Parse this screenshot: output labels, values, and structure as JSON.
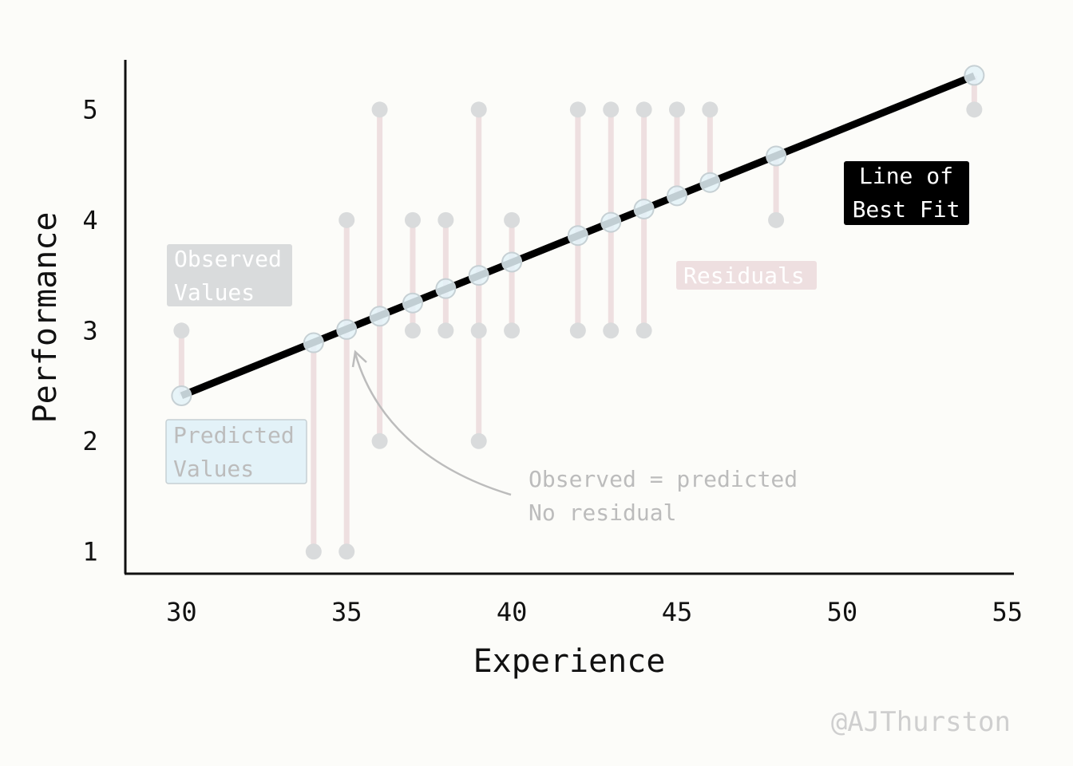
{
  "chart_data": {
    "type": "scatter",
    "title": "",
    "xlabel": "Experience",
    "ylabel": "Performance",
    "xlim": [
      28.3,
      55.2
    ],
    "ylim": [
      0.8,
      5.45
    ],
    "xticks": [
      30,
      35,
      40,
      45,
      50,
      55
    ],
    "yticks": [
      1,
      2,
      3,
      4,
      5
    ],
    "grid": false,
    "line_of_best_fit": {
      "intercept": -1.207,
      "slope": 0.1206
    },
    "series": [
      {
        "x": [
          30,
          34,
          35,
          36,
          37,
          38,
          39,
          40,
          42,
          43,
          44,
          45,
          46,
          48,
          54
        ],
        "observed": [
          3,
          1,
          1,
          5,
          4,
          3,
          5,
          4,
          5,
          5,
          5,
          5,
          5,
          4,
          5
        ],
        "predicted": [
          2.41,
          2.89,
          3.01,
          3.13,
          3.25,
          3.38,
          3.5,
          3.62,
          3.86,
          3.98,
          4.1,
          4.22,
          4.34,
          4.58,
          5.31
        ]
      },
      {
        "x": [
          35,
          37,
          38,
          39,
          40,
          42,
          43,
          44
        ],
        "observed": [
          4,
          3,
          4,
          2,
          3,
          3,
          3,
          3
        ]
      },
      {
        "x": [
          36,
          39
        ],
        "observed": [
          2,
          3
        ]
      }
    ],
    "annotations": {
      "observed_label": [
        "Observed",
        "Values"
      ],
      "predicted_label": [
        "Predicted",
        "Values"
      ],
      "residuals_label": "Residuals",
      "fit_label": [
        "Line of",
        "Best Fit"
      ],
      "no_residual_label": [
        "Observed = predicted",
        "No residual"
      ]
    },
    "watermark": "@AJThurston"
  },
  "colors": {
    "background": "#fcfcf9",
    "observed": "#d9dbdc",
    "predicted_fill": "#e3f2f8",
    "predicted_stroke": "#c6d0d4",
    "residual": "#eedfe0",
    "fit_line": "#000000",
    "annotation_text": "#bcbcbc"
  }
}
